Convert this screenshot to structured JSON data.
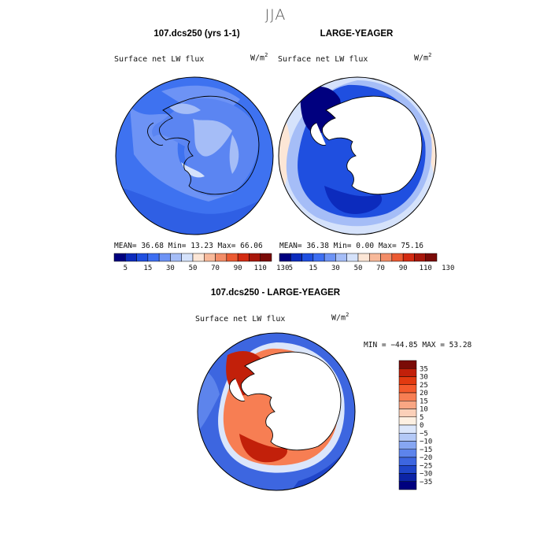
{
  "figure": {
    "season": "JJA"
  },
  "panels": [
    {
      "title": "107.dcs250 (yrs 1-1)",
      "variable": "Surface net LW flux",
      "units_base": "W/m",
      "units_exp": "2",
      "stats": "MEAN=  36.68  Min=  13.23  Max=  66.06",
      "projection": "south polar stereographic"
    },
    {
      "title": "LARGE-YEAGER",
      "variable": "Surface net LW flux",
      "units_base": "W/m",
      "units_exp": "2",
      "stats": "MEAN=  36.38  Min=   0.00  Max=  75.16",
      "projection": "south polar stereographic"
    },
    {
      "title": "107.dcs250 - LARGE-YEAGER",
      "variable": "Surface net LW flux",
      "units_base": "W/m",
      "units_exp": "2",
      "stats": "MIN = −44.85 MAX =  53.28",
      "projection": "south polar stereographic"
    }
  ],
  "colorbars": {
    "absolute": {
      "colors": [
        "#00007f",
        "#0c2bbd",
        "#1f4fe0",
        "#3d6ef2",
        "#6d93f5",
        "#a5bdf7",
        "#d5e2fb",
        "#fce6d6",
        "#f8b99a",
        "#f38d68",
        "#eb5a32",
        "#d32b12",
        "#a8170b",
        "#7a0b07"
      ],
      "tick_labels": [
        "5",
        "15",
        "30",
        "50",
        "70",
        "90",
        "110",
        "130"
      ]
    },
    "difference": {
      "colors": [
        "#7a0b07",
        "#c2200a",
        "#e23a10",
        "#f45a2c",
        "#f77e53",
        "#f9a683",
        "#fbd0b9",
        "#fdf0e2",
        "#dbe6fb",
        "#b4c9f7",
        "#86a6f2",
        "#5d84ec",
        "#3d66e0",
        "#1f45c9",
        "#0c24a6",
        "#00007f"
      ],
      "tick_labels": [
        "35",
        "30",
        "25",
        "20",
        "15",
        "10",
        "5",
        "0",
        "−5",
        "−10",
        "−15",
        "−20",
        "−25",
        "−30",
        "−35"
      ]
    }
  }
}
